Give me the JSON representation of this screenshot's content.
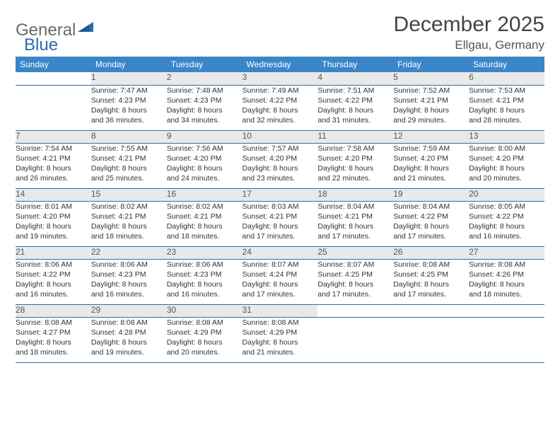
{
  "brand": {
    "part1": "General",
    "part2": "Blue"
  },
  "title": "December 2025",
  "location": "Ellgau, Germany",
  "colors": {
    "header_bg": "#3a86c8",
    "header_text": "#ffffff",
    "daynum_bg": "#e9e9e9",
    "border": "#2f6fa8",
    "logo_gray": "#6a6a6a",
    "logo_blue": "#2a6bb0"
  },
  "weekdays": [
    "Sunday",
    "Monday",
    "Tuesday",
    "Wednesday",
    "Thursday",
    "Friday",
    "Saturday"
  ],
  "weeks": [
    {
      "nums": [
        "",
        "1",
        "2",
        "3",
        "4",
        "5",
        "6"
      ],
      "cells": [
        null,
        {
          "sr": "Sunrise: 7:47 AM",
          "ss": "Sunset: 4:23 PM",
          "d1": "Daylight: 8 hours",
          "d2": "and 36 minutes."
        },
        {
          "sr": "Sunrise: 7:48 AM",
          "ss": "Sunset: 4:23 PM",
          "d1": "Daylight: 8 hours",
          "d2": "and 34 minutes."
        },
        {
          "sr": "Sunrise: 7:49 AM",
          "ss": "Sunset: 4:22 PM",
          "d1": "Daylight: 8 hours",
          "d2": "and 32 minutes."
        },
        {
          "sr": "Sunrise: 7:51 AM",
          "ss": "Sunset: 4:22 PM",
          "d1": "Daylight: 8 hours",
          "d2": "and 31 minutes."
        },
        {
          "sr": "Sunrise: 7:52 AM",
          "ss": "Sunset: 4:21 PM",
          "d1": "Daylight: 8 hours",
          "d2": "and 29 minutes."
        },
        {
          "sr": "Sunrise: 7:53 AM",
          "ss": "Sunset: 4:21 PM",
          "d1": "Daylight: 8 hours",
          "d2": "and 28 minutes."
        }
      ]
    },
    {
      "nums": [
        "7",
        "8",
        "9",
        "10",
        "11",
        "12",
        "13"
      ],
      "cells": [
        {
          "sr": "Sunrise: 7:54 AM",
          "ss": "Sunset: 4:21 PM",
          "d1": "Daylight: 8 hours",
          "d2": "and 26 minutes."
        },
        {
          "sr": "Sunrise: 7:55 AM",
          "ss": "Sunset: 4:21 PM",
          "d1": "Daylight: 8 hours",
          "d2": "and 25 minutes."
        },
        {
          "sr": "Sunrise: 7:56 AM",
          "ss": "Sunset: 4:20 PM",
          "d1": "Daylight: 8 hours",
          "d2": "and 24 minutes."
        },
        {
          "sr": "Sunrise: 7:57 AM",
          "ss": "Sunset: 4:20 PM",
          "d1": "Daylight: 8 hours",
          "d2": "and 23 minutes."
        },
        {
          "sr": "Sunrise: 7:58 AM",
          "ss": "Sunset: 4:20 PM",
          "d1": "Daylight: 8 hours",
          "d2": "and 22 minutes."
        },
        {
          "sr": "Sunrise: 7:59 AM",
          "ss": "Sunset: 4:20 PM",
          "d1": "Daylight: 8 hours",
          "d2": "and 21 minutes."
        },
        {
          "sr": "Sunrise: 8:00 AM",
          "ss": "Sunset: 4:20 PM",
          "d1": "Daylight: 8 hours",
          "d2": "and 20 minutes."
        }
      ]
    },
    {
      "nums": [
        "14",
        "15",
        "16",
        "17",
        "18",
        "19",
        "20"
      ],
      "cells": [
        {
          "sr": "Sunrise: 8:01 AM",
          "ss": "Sunset: 4:20 PM",
          "d1": "Daylight: 8 hours",
          "d2": "and 19 minutes."
        },
        {
          "sr": "Sunrise: 8:02 AM",
          "ss": "Sunset: 4:21 PM",
          "d1": "Daylight: 8 hours",
          "d2": "and 18 minutes."
        },
        {
          "sr": "Sunrise: 8:02 AM",
          "ss": "Sunset: 4:21 PM",
          "d1": "Daylight: 8 hours",
          "d2": "and 18 minutes."
        },
        {
          "sr": "Sunrise: 8:03 AM",
          "ss": "Sunset: 4:21 PM",
          "d1": "Daylight: 8 hours",
          "d2": "and 17 minutes."
        },
        {
          "sr": "Sunrise: 8:04 AM",
          "ss": "Sunset: 4:21 PM",
          "d1": "Daylight: 8 hours",
          "d2": "and 17 minutes."
        },
        {
          "sr": "Sunrise: 8:04 AM",
          "ss": "Sunset: 4:22 PM",
          "d1": "Daylight: 8 hours",
          "d2": "and 17 minutes."
        },
        {
          "sr": "Sunrise: 8:05 AM",
          "ss": "Sunset: 4:22 PM",
          "d1": "Daylight: 8 hours",
          "d2": "and 16 minutes."
        }
      ]
    },
    {
      "nums": [
        "21",
        "22",
        "23",
        "24",
        "25",
        "26",
        "27"
      ],
      "cells": [
        {
          "sr": "Sunrise: 8:06 AM",
          "ss": "Sunset: 4:22 PM",
          "d1": "Daylight: 8 hours",
          "d2": "and 16 minutes."
        },
        {
          "sr": "Sunrise: 8:06 AM",
          "ss": "Sunset: 4:23 PM",
          "d1": "Daylight: 8 hours",
          "d2": "and 16 minutes."
        },
        {
          "sr": "Sunrise: 8:06 AM",
          "ss": "Sunset: 4:23 PM",
          "d1": "Daylight: 8 hours",
          "d2": "and 16 minutes."
        },
        {
          "sr": "Sunrise: 8:07 AM",
          "ss": "Sunset: 4:24 PM",
          "d1": "Daylight: 8 hours",
          "d2": "and 17 minutes."
        },
        {
          "sr": "Sunrise: 8:07 AM",
          "ss": "Sunset: 4:25 PM",
          "d1": "Daylight: 8 hours",
          "d2": "and 17 minutes."
        },
        {
          "sr": "Sunrise: 8:08 AM",
          "ss": "Sunset: 4:25 PM",
          "d1": "Daylight: 8 hours",
          "d2": "and 17 minutes."
        },
        {
          "sr": "Sunrise: 8:08 AM",
          "ss": "Sunset: 4:26 PM",
          "d1": "Daylight: 8 hours",
          "d2": "and 18 minutes."
        }
      ]
    },
    {
      "nums": [
        "28",
        "29",
        "30",
        "31",
        "",
        "",
        ""
      ],
      "cells": [
        {
          "sr": "Sunrise: 8:08 AM",
          "ss": "Sunset: 4:27 PM",
          "d1": "Daylight: 8 hours",
          "d2": "and 18 minutes."
        },
        {
          "sr": "Sunrise: 8:08 AM",
          "ss": "Sunset: 4:28 PM",
          "d1": "Daylight: 8 hours",
          "d2": "and 19 minutes."
        },
        {
          "sr": "Sunrise: 8:08 AM",
          "ss": "Sunset: 4:29 PM",
          "d1": "Daylight: 8 hours",
          "d2": "and 20 minutes."
        },
        {
          "sr": "Sunrise: 8:08 AM",
          "ss": "Sunset: 4:29 PM",
          "d1": "Daylight: 8 hours",
          "d2": "and 21 minutes."
        },
        null,
        null,
        null
      ]
    }
  ]
}
